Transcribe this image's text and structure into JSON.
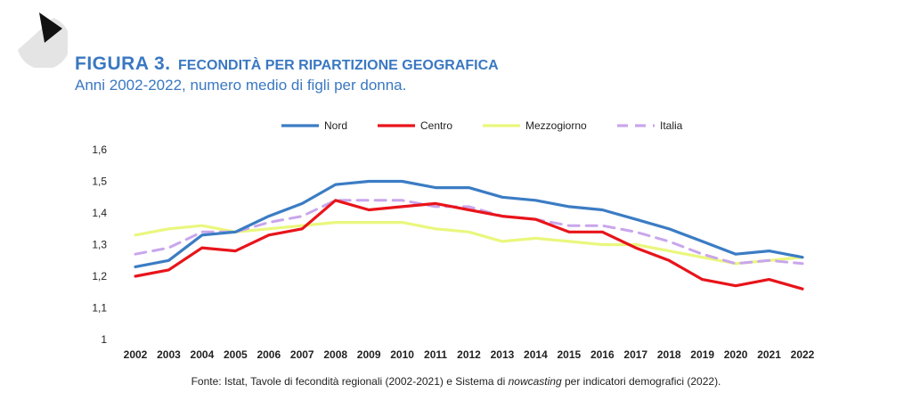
{
  "header": {
    "figure_label": "FIGURA 3.",
    "title": "FECONDITÀ PER RIPARTIZIONE GEOGRAFICA",
    "subtitle": "Anni 2002-2022, numero medio di figli per donna."
  },
  "source": {
    "prefix": "Fonte: Istat, Tavole di fecondità regionali (2002-2021) e Sistema di ",
    "italic": "nowcasting",
    "suffix": " per indicatori demografici (2022)."
  },
  "chart_data": {
    "type": "line",
    "title": "",
    "xlabel": "",
    "ylabel": "",
    "x": [
      "2002",
      "2003",
      "2004",
      "2005",
      "2006",
      "2007",
      "2008",
      "2009",
      "2010",
      "2011",
      "2012",
      "2013",
      "2014",
      "2015",
      "2016",
      "2017",
      "2018",
      "2019",
      "2020",
      "2021",
      "2022"
    ],
    "ylim": [
      1,
      1.6
    ],
    "yticks": [
      "1",
      "1,1",
      "1,2",
      "1,3",
      "1,4",
      "1,5",
      "1,6"
    ],
    "grid": false,
    "legend_position": "top",
    "series": [
      {
        "name": "Nord",
        "color": "#3b7cc4",
        "dashed": false,
        "values": [
          1.23,
          1.25,
          1.33,
          1.34,
          1.39,
          1.43,
          1.49,
          1.5,
          1.5,
          1.48,
          1.48,
          1.45,
          1.44,
          1.42,
          1.41,
          1.38,
          1.35,
          1.31,
          1.27,
          1.28,
          1.26
        ]
      },
      {
        "name": "Centro",
        "color": "#e8141a",
        "dashed": false,
        "values": [
          1.2,
          1.22,
          1.29,
          1.28,
          1.33,
          1.35,
          1.44,
          1.41,
          1.42,
          1.43,
          1.41,
          1.39,
          1.38,
          1.34,
          1.34,
          1.29,
          1.25,
          1.19,
          1.17,
          1.19,
          1.16
        ]
      },
      {
        "name": "Mezzogiorno",
        "color": "#e9f77d",
        "dashed": false,
        "values": [
          1.33,
          1.35,
          1.36,
          1.34,
          1.35,
          1.36,
          1.37,
          1.37,
          1.37,
          1.35,
          1.34,
          1.31,
          1.32,
          1.31,
          1.3,
          1.3,
          1.28,
          1.26,
          1.24,
          1.25,
          1.26
        ]
      },
      {
        "name": "Italia",
        "color": "#c9a6ec",
        "dashed": true,
        "values": [
          1.27,
          1.29,
          1.34,
          1.34,
          1.37,
          1.39,
          1.44,
          1.44,
          1.44,
          1.42,
          1.42,
          1.39,
          1.38,
          1.36,
          1.36,
          1.34,
          1.31,
          1.27,
          1.24,
          1.25,
          1.24
        ]
      }
    ]
  }
}
